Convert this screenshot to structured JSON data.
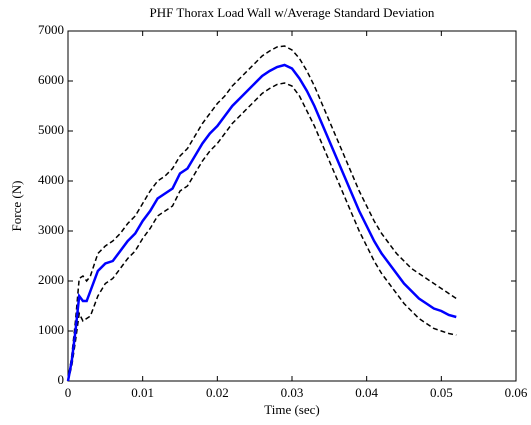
{
  "chart_data": {
    "type": "line",
    "title": "PHF Thorax Load Wall w/Average Standard Deviation",
    "x_label": "Time (sec)",
    "y_label": "Force (N)",
    "x": [
      0,
      0.0005,
      0.001,
      0.0015,
      0.002,
      0.0025,
      0.003,
      0.004,
      0.005,
      0.006,
      0.007,
      0.008,
      0.009,
      0.01,
      0.011,
      0.012,
      0.013,
      0.014,
      0.015,
      0.016,
      0.017,
      0.018,
      0.019,
      0.02,
      0.021,
      0.022,
      0.023,
      0.024,
      0.025,
      0.026,
      0.027,
      0.028,
      0.029,
      0.03,
      0.031,
      0.032,
      0.033,
      0.034,
      0.035,
      0.036,
      0.037,
      0.038,
      0.039,
      0.04,
      0.041,
      0.042,
      0.043,
      0.044,
      0.045,
      0.046,
      0.047,
      0.048,
      0.049,
      0.05,
      0.051,
      0.052
    ],
    "series": [
      {
        "color": "#0000ff",
        "style": "solid",
        "values": [
          0,
          400,
          1000,
          1700,
          1600,
          1600,
          1800,
          2200,
          2350,
          2400,
          2600,
          2800,
          2950,
          3200,
          3400,
          3650,
          3750,
          3850,
          4150,
          4250,
          4500,
          4750,
          4950,
          5100,
          5300,
          5500,
          5650,
          5800,
          5950,
          6100,
          6200,
          6280,
          6320,
          6250,
          6050,
          5800,
          5500,
          5150,
          4800,
          4450,
          4100,
          3750,
          3400,
          3100,
          2800,
          2550,
          2350,
          2150,
          1950,
          1800,
          1650,
          1550,
          1450,
          1400,
          1320,
          1280
        ]
      },
      {
        "color": "#000000",
        "style": "dashed",
        "values": [
          0,
          500,
          1200,
          2050,
          2100,
          2000,
          2100,
          2550,
          2700,
          2800,
          2950,
          3150,
          3300,
          3550,
          3800,
          4000,
          4100,
          4250,
          4500,
          4650,
          4900,
          5150,
          5350,
          5550,
          5700,
          5900,
          6050,
          6200,
          6350,
          6500,
          6600,
          6680,
          6700,
          6620,
          6450,
          6200,
          5900,
          5550,
          5200,
          4850,
          4500,
          4150,
          3800,
          3500,
          3200,
          2950,
          2750,
          2550,
          2400,
          2250,
          2150,
          2050,
          1950,
          1850,
          1750,
          1650
        ]
      },
      {
        "color": "#000000",
        "style": "dashed",
        "values": [
          0,
          300,
          800,
          1350,
          1200,
          1250,
          1300,
          1700,
          1950,
          2050,
          2250,
          2450,
          2600,
          2850,
          3050,
          3300,
          3400,
          3500,
          3800,
          3900,
          4150,
          4400,
          4600,
          4750,
          4950,
          5150,
          5300,
          5450,
          5600,
          5750,
          5850,
          5930,
          5960,
          5900,
          5700,
          5400,
          5100,
          4750,
          4400,
          4050,
          3700,
          3350,
          3000,
          2700,
          2400,
          2150,
          1950,
          1750,
          1550,
          1400,
          1250,
          1150,
          1050,
          1000,
          950,
          920
        ]
      }
    ],
    "xlim": [
      0,
      0.06
    ],
    "xticks": [
      0,
      0.01,
      0.02,
      0.03,
      0.04,
      0.05,
      0.06
    ],
    "ylim": [
      0,
      7000
    ],
    "yticks": [
      0,
      1000,
      2000,
      3000,
      4000,
      5000,
      6000,
      7000
    ],
    "grid": false
  }
}
